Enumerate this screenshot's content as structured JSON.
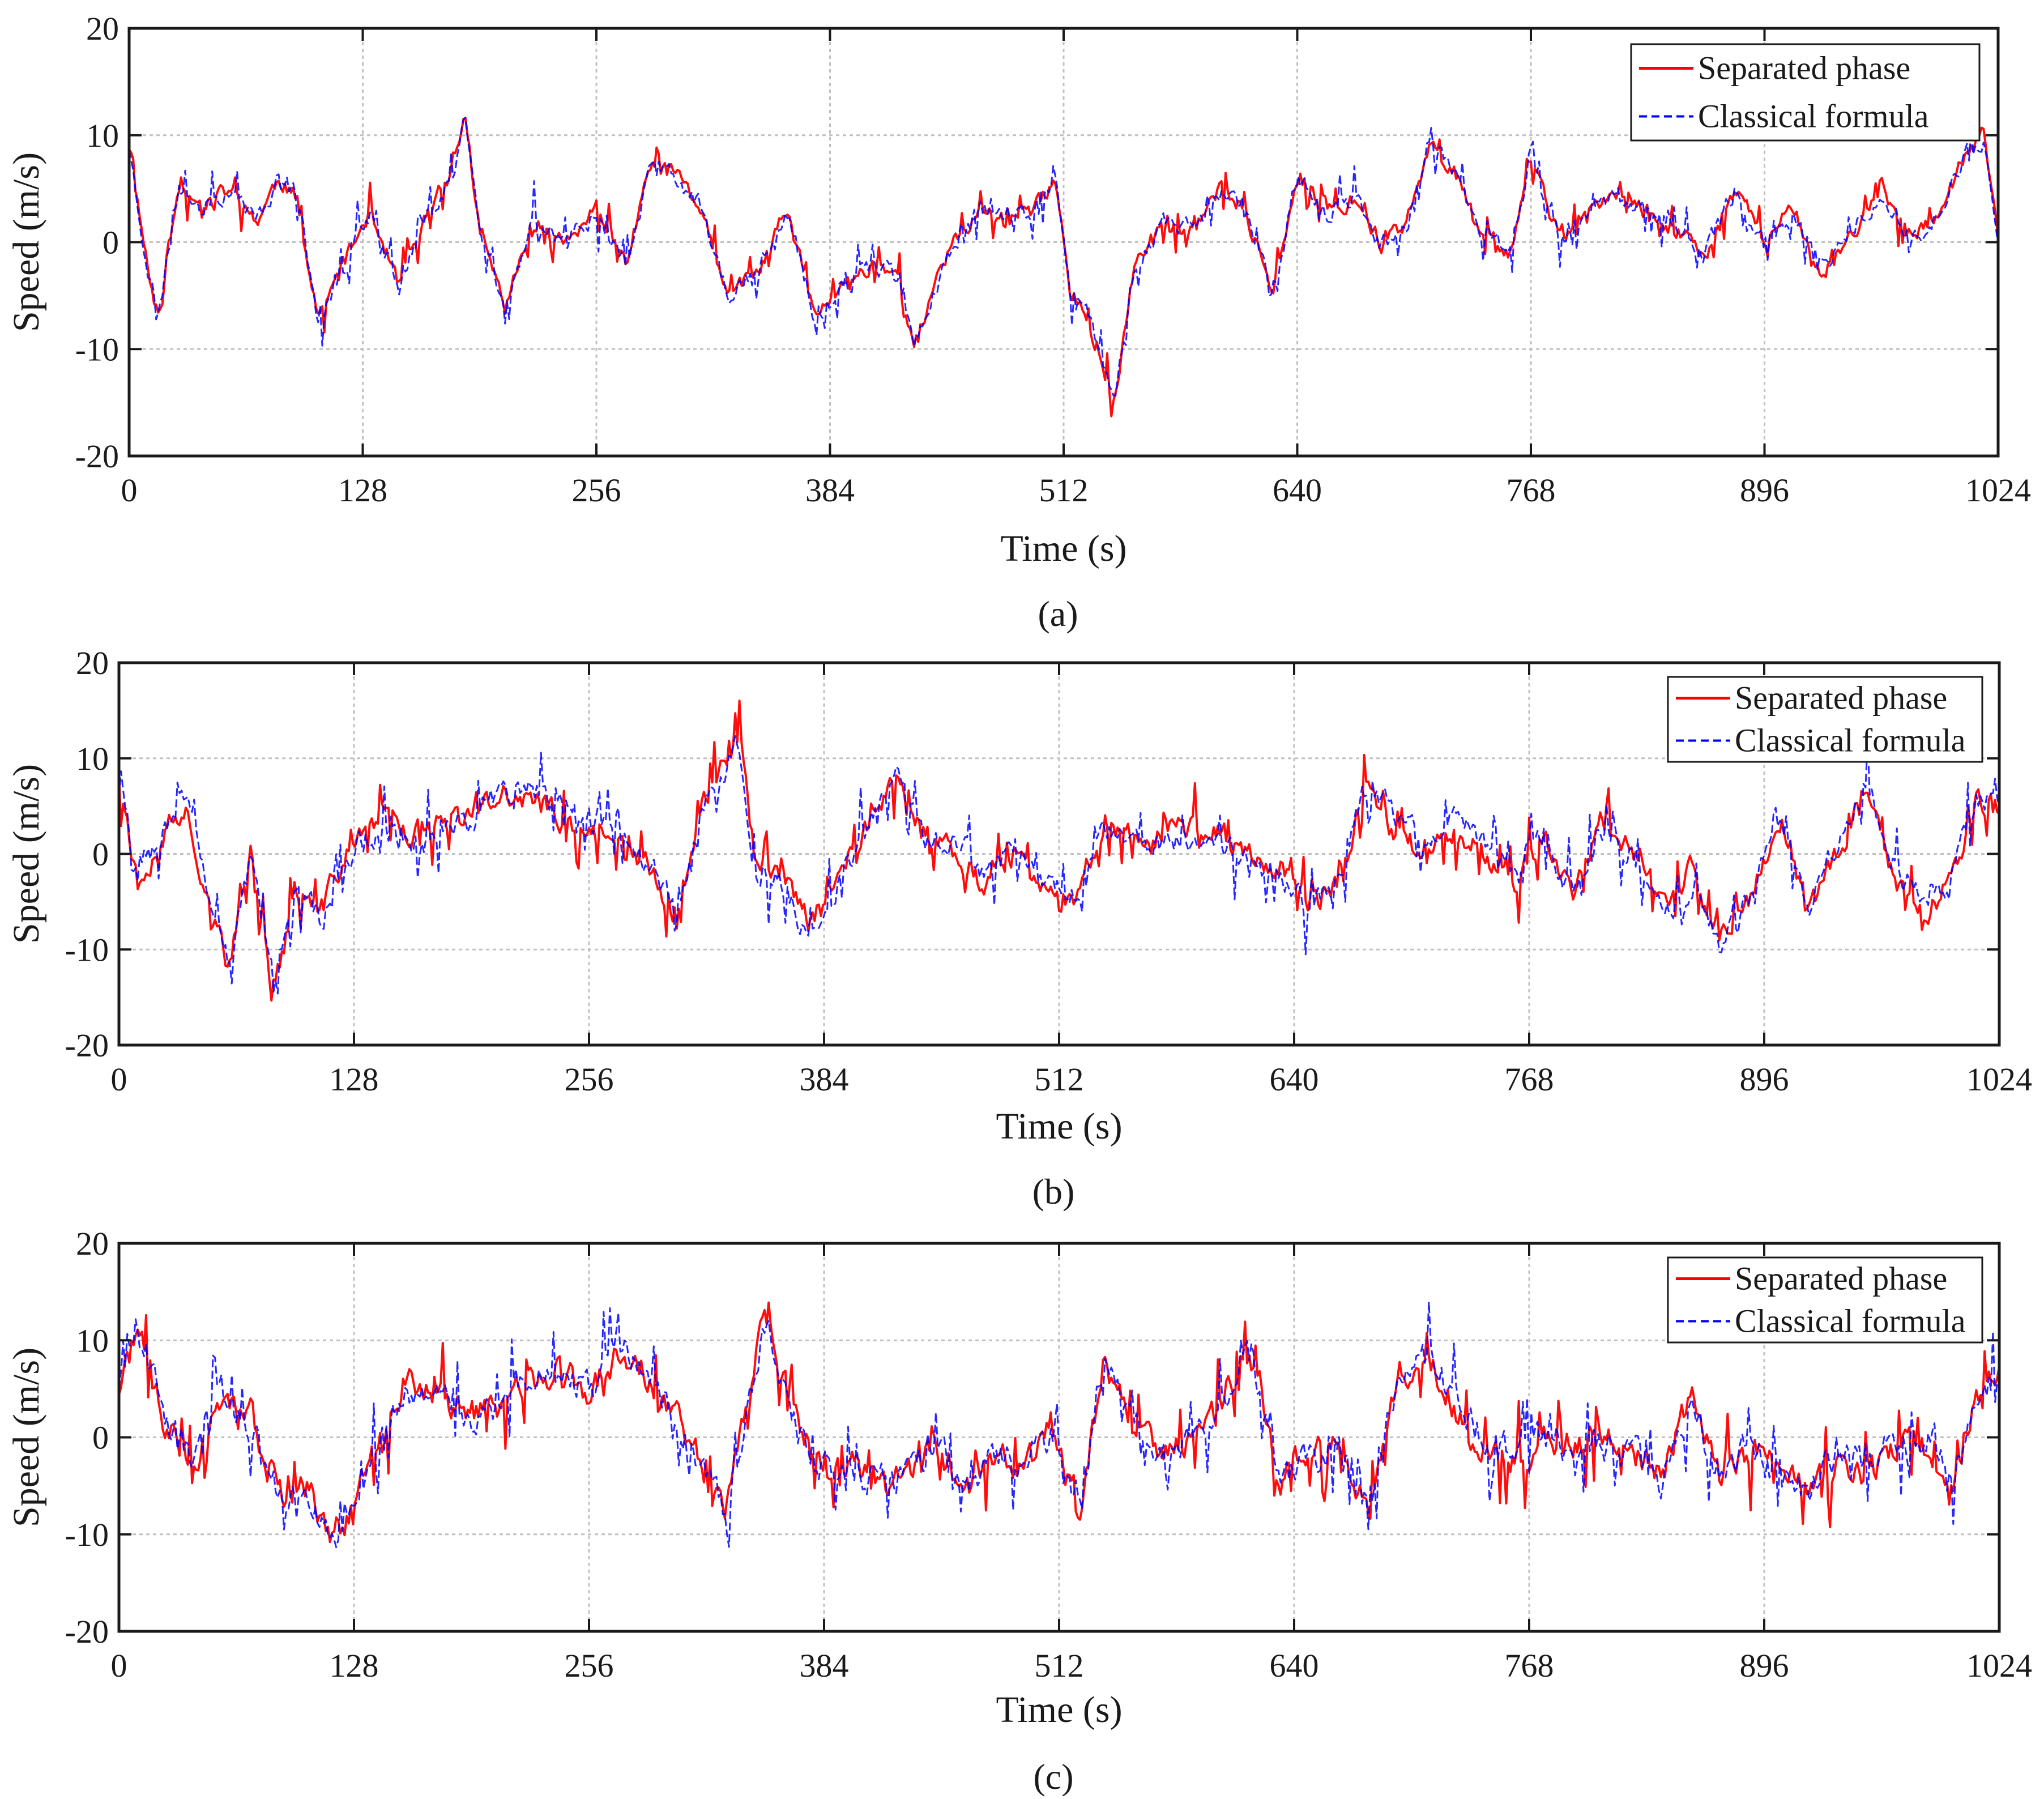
{
  "colors": {
    "separated": "#ff0000",
    "classical": "#0000ff",
    "grid": "#c0c0c0",
    "axis": "#1a1a1a"
  },
  "chart_data": [
    {
      "type": "line",
      "panel_label": "(a)",
      "xlabel": "Time (s)",
      "ylabel": "Speed (m/s)",
      "xlim": [
        0,
        1024
      ],
      "ylim": [
        -20,
        20
      ],
      "xticks": [
        0,
        128,
        256,
        384,
        512,
        640,
        768,
        896,
        1024
      ],
      "yticks": [
        -20,
        -10,
        0,
        10,
        20
      ],
      "grid": true,
      "legend_position": "top-right",
      "legend": [
        "Separated phase",
        "Classical formula"
      ],
      "series": [
        {
          "name": "Separated phase",
          "style": "solid",
          "seed": 11,
          "dev": 0.6,
          "shift": 0,
          "x": [
            0,
            8,
            16,
            28,
            40,
            55,
            70,
            82,
            92,
            104,
            118,
            132,
            148,
            162,
            178,
            184,
            192,
            206,
            222,
            240,
            256,
            272,
            286,
            300,
            314,
            328,
            344,
            360,
            376,
            392,
            408,
            422,
            430,
            440,
            452,
            466,
            480,
            496,
            508,
            516,
            524,
            532,
            540,
            550,
            566,
            582,
            598,
            612,
            626,
            640,
            656,
            672,
            686,
            700,
            712,
            726,
            740,
            756,
            768,
            784,
            800,
            816,
            832,
            848,
            864,
            880,
            896,
            912,
            928,
            944,
            960,
            976,
            992,
            1006,
            1016,
            1024
          ],
          "y": [
            9,
            0,
            -7,
            6,
            3,
            5,
            2,
            6,
            4,
            -7,
            -2,
            3,
            -4,
            2,
            7,
            12,
            1,
            -6,
            2,
            0,
            3,
            -2,
            7,
            6,
            3,
            -5,
            -3,
            3,
            -7,
            -4,
            -2,
            -3,
            -10,
            -5,
            0,
            3,
            2,
            3,
            6,
            -5,
            -6,
            -11,
            -15,
            -3,
            2,
            1,
            5,
            3,
            -5,
            6,
            3,
            4,
            0,
            2,
            9,
            7,
            1,
            -1,
            8,
            0,
            3,
            4,
            3,
            1,
            -1,
            5,
            0,
            3,
            -3,
            1,
            5,
            0,
            3,
            8,
            10,
            0
          ]
        },
        {
          "name": "Classical formula",
          "style": "dashed",
          "seed": 23,
          "dev": 0.7,
          "shift": 0,
          "x": [
            0,
            8,
            16,
            28,
            40,
            55,
            70,
            82,
            92,
            104,
            118,
            132,
            148,
            162,
            178,
            184,
            192,
            206,
            222,
            240,
            256,
            272,
            286,
            300,
            314,
            328,
            344,
            360,
            376,
            392,
            408,
            422,
            430,
            440,
            452,
            466,
            480,
            496,
            508,
            516,
            524,
            532,
            540,
            550,
            566,
            582,
            598,
            612,
            626,
            640,
            656,
            672,
            686,
            700,
            712,
            726,
            740,
            756,
            768,
            784,
            800,
            816,
            832,
            848,
            864,
            880,
            896,
            912,
            928,
            944,
            960,
            976,
            992,
            1006,
            1016,
            1024
          ],
          "y": [
            9,
            0,
            -7,
            6,
            3,
            5,
            2,
            6,
            4,
            -7,
            -2,
            3,
            -4,
            2,
            7,
            12,
            1,
            -6,
            2,
            0,
            3,
            -2,
            7,
            6,
            3,
            -5,
            -3,
            3,
            -7,
            -4,
            -2,
            -3,
            -10,
            -5,
            0,
            3,
            2,
            3,
            6,
            -5,
            -6,
            -11,
            -15,
            -3,
            2,
            1,
            5,
            3,
            -5,
            6,
            3,
            4,
            0,
            2,
            9,
            7,
            1,
            -1,
            8,
            0,
            3,
            4,
            3,
            1,
            -1,
            5,
            0,
            3,
            -3,
            1,
            5,
            0,
            3,
            8,
            10,
            0
          ]
        }
      ]
    },
    {
      "type": "line",
      "panel_label": "(b)",
      "xlabel": "Time (s)",
      "ylabel": "Speed (m/s)",
      "xlim": [
        0,
        1024
      ],
      "ylim": [
        -20,
        20
      ],
      "xticks": [
        0,
        128,
        256,
        384,
        512,
        640,
        768,
        896,
        1024
      ],
      "yticks": [
        -20,
        -10,
        0,
        10,
        20
      ],
      "grid": true,
      "legend_position": "top-right",
      "legend": [
        "Separated phase",
        "Classical formula"
      ],
      "series": [
        {
          "name": "Separated phase",
          "style": "solid",
          "seed": 37,
          "dev": 1.0,
          "shift": 0,
          "x": [
            0,
            10,
            24,
            36,
            48,
            60,
            72,
            84,
            96,
            110,
            128,
            144,
            160,
            176,
            192,
            208,
            224,
            240,
            256,
            272,
            290,
            304,
            318,
            330,
            338,
            346,
            360,
            376,
            392,
            408,
            424,
            440,
            456,
            472,
            488,
            504,
            520,
            536,
            552,
            568,
            584,
            600,
            616,
            632,
            648,
            664,
            680,
            696,
            712,
            728,
            744,
            760,
            776,
            792,
            808,
            824,
            840,
            856,
            872,
            888,
            904,
            920,
            936,
            952,
            968,
            984,
            1000,
            1012,
            1024
          ],
          "y": [
            9,
            -3,
            2,
            5,
            -4,
            -12,
            0,
            -15,
            -4,
            -6,
            2,
            4,
            2,
            3,
            4,
            6,
            6,
            4,
            2,
            3,
            -2,
            -7,
            6,
            9,
            12,
            0,
            -2,
            -7,
            -2,
            3,
            8,
            1,
            0,
            -3,
            0,
            -4,
            -5,
            3,
            2,
            2,
            3,
            2,
            0,
            -1,
            -6,
            -3,
            7,
            2,
            0,
            3,
            0,
            -3,
            2,
            -4,
            3,
            1,
            -5,
            -2,
            -9,
            -5,
            4,
            -6,
            0,
            7,
            -3,
            -6,
            -2,
            6,
            5
          ]
        },
        {
          "name": "Classical formula",
          "style": "dashed",
          "seed": 53,
          "dev": 1.1,
          "shift": 1.2,
          "x": [
            0,
            10,
            24,
            36,
            48,
            60,
            72,
            84,
            96,
            110,
            128,
            144,
            160,
            176,
            192,
            208,
            224,
            240,
            256,
            272,
            290,
            304,
            318,
            330,
            338,
            346,
            360,
            376,
            392,
            408,
            424,
            440,
            456,
            472,
            488,
            504,
            520,
            536,
            552,
            568,
            584,
            600,
            616,
            632,
            648,
            664,
            680,
            696,
            712,
            728,
            744,
            760,
            776,
            792,
            808,
            824,
            840,
            856,
            872,
            888,
            904,
            920,
            936,
            952,
            968,
            984,
            1000,
            1012,
            1024
          ],
          "y": [
            9,
            -3,
            2,
            5,
            -4,
            -12,
            0,
            -15,
            -4,
            -6,
            2,
            4,
            2,
            3,
            4,
            6,
            6,
            4,
            2,
            3,
            -2,
            -7,
            6,
            9,
            12,
            0,
            -2,
            -7,
            -2,
            3,
            8,
            1,
            0,
            -3,
            0,
            -4,
            -5,
            3,
            2,
            2,
            3,
            2,
            0,
            -1,
            -6,
            -3,
            7,
            2,
            0,
            3,
            0,
            -3,
            2,
            -4,
            3,
            1,
            -5,
            -2,
            -9,
            -5,
            4,
            -6,
            0,
            7,
            -3,
            -6,
            -2,
            6,
            5
          ]
        }
      ]
    },
    {
      "type": "line",
      "panel_label": "(c)",
      "xlabel": "Time (s)",
      "ylabel": "Speed (m/s)",
      "xlim": [
        0,
        1024
      ],
      "ylim": [
        -20,
        20
      ],
      "xticks": [
        0,
        128,
        256,
        384,
        512,
        640,
        768,
        896,
        1024
      ],
      "yticks": [
        -20,
        -10,
        0,
        10,
        20
      ],
      "grid": true,
      "legend_position": "top-right",
      "legend": [
        "Separated phase",
        "Classical formula"
      ],
      "series": [
        {
          "name": "Separated phase",
          "style": "solid",
          "seed": 71,
          "dev": 1.2,
          "shift": 0,
          "x": [
            0,
            10,
            24,
            40,
            56,
            72,
            88,
            104,
            114,
            126,
            140,
            156,
            172,
            188,
            204,
            220,
            240,
            256,
            272,
            288,
            304,
            320,
            330,
            344,
            352,
            366,
            380,
            396,
            412,
            426,
            444,
            460,
            476,
            492,
            508,
            524,
            536,
            552,
            568,
            584,
            600,
            616,
            632,
            648,
            664,
            680,
            696,
            712,
            728,
            744,
            760,
            776,
            792,
            808,
            824,
            840,
            856,
            872,
            888,
            904,
            920,
            936,
            952,
            968,
            984,
            1000,
            1012,
            1024
          ],
          "y": [
            5,
            11,
            2,
            -3,
            4,
            1,
            -6,
            -5,
            -10,
            -8,
            -1,
            6,
            5,
            3,
            2,
            5,
            7,
            4,
            9,
            6,
            2,
            -4,
            -8,
            5,
            13,
            3,
            -2,
            -3,
            -4,
            -4,
            -1,
            -6,
            -2,
            -3,
            0,
            -8,
            8,
            2,
            -2,
            0,
            4,
            9,
            -4,
            -2,
            -1,
            -7,
            6,
            9,
            3,
            -1,
            -2,
            0,
            -1,
            0,
            -1,
            -4,
            4,
            -4,
            -1,
            -4,
            -6,
            -3,
            -4,
            -1,
            -1,
            -4,
            4,
            6
          ]
        },
        {
          "name": "Classical formula",
          "style": "dashed",
          "seed": 89,
          "dev": 1.3,
          "shift": 0.8,
          "x": [
            0,
            10,
            24,
            40,
            56,
            72,
            88,
            104,
            114,
            126,
            140,
            156,
            172,
            188,
            204,
            220,
            240,
            256,
            272,
            288,
            304,
            320,
            330,
            344,
            352,
            366,
            380,
            396,
            412,
            426,
            444,
            460,
            476,
            492,
            508,
            524,
            536,
            552,
            568,
            584,
            600,
            616,
            632,
            648,
            664,
            680,
            696,
            712,
            728,
            744,
            760,
            776,
            792,
            808,
            824,
            840,
            856,
            872,
            888,
            904,
            920,
            936,
            952,
            968,
            984,
            1000,
            1012,
            1024
          ],
          "y": [
            5,
            11,
            2,
            -3,
            4,
            1,
            -6,
            -5,
            -10,
            -8,
            -1,
            6,
            5,
            3,
            2,
            5,
            7,
            4,
            9,
            6,
            2,
            -4,
            -8,
            5,
            13,
            3,
            -2,
            -3,
            -4,
            -4,
            -1,
            -6,
            -2,
            -3,
            0,
            -8,
            8,
            2,
            -2,
            0,
            4,
            9,
            -4,
            -2,
            -1,
            -7,
            6,
            9,
            3,
            -1,
            -2,
            0,
            -1,
            0,
            -1,
            -4,
            4,
            -4,
            -1,
            -4,
            -6,
            -3,
            -4,
            -1,
            -1,
            -4,
            4,
            6
          ]
        }
      ]
    }
  ]
}
